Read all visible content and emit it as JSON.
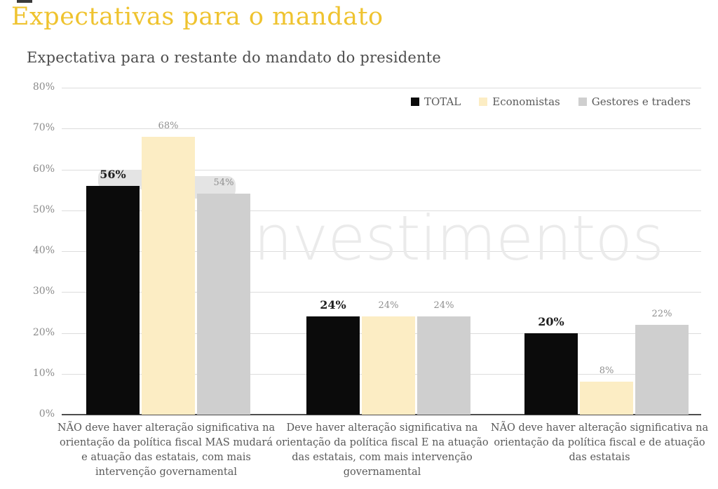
{
  "page": {
    "title": "Expectativas para o mandato",
    "title_color": "#EFC32F",
    "subtitle": "Expectativa para o restante do mandato do presidente",
    "watermark": "investimentos"
  },
  "chart_data": {
    "type": "bar",
    "title": "Expectativa para o restante do mandato do presidente",
    "categories": [
      "NÃO deve haver alteração significativa na orientação da política fiscal MAS mudará e atuação das estatais, com mais intervenção governamental",
      "Deve haver alteração significativa na orientação da política fiscal E na atuação das estatais, com mais intervenção governamental",
      "NÃO deve haver alteração significativa na orientação da política fiscal e de atuação das estatais"
    ],
    "series": [
      {
        "name": "TOTAL",
        "color": "#0b0b0b",
        "values": [
          56,
          24,
          20
        ]
      },
      {
        "name": "Economistas",
        "color": "#FCEDC4",
        "values": [
          68,
          24,
          8
        ]
      },
      {
        "name": "Gestores e traders",
        "color": "#CFCFCF",
        "values": [
          54,
          24,
          22
        ]
      }
    ],
    "y_ticks": [
      0,
      10,
      20,
      30,
      40,
      50,
      60,
      70,
      80
    ],
    "ylim": [
      0,
      80
    ],
    "value_suffix": "%",
    "grid": true,
    "legend_position": "top-right"
  }
}
